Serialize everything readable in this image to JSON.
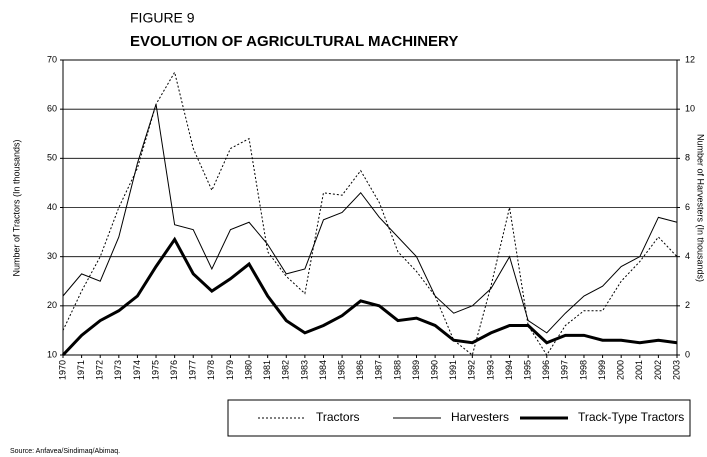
{
  "chart_data": {
    "type": "line",
    "figure_label": "FIGURE 9",
    "title": "EVOLUTION OF AGRICULTURAL MACHINERY",
    "y_label": "Number of Tractors (In thousands)",
    "y2_label": "Number of Harvesters (In thousands)",
    "source": "Source: Anfavea/Sindimaq/Abimaq.",
    "categories": [
      "1970",
      "1971",
      "1972",
      "1973",
      "1974",
      "1975",
      "1976",
      "1977",
      "1978",
      "1979",
      "1980",
      "1981",
      "1982",
      "1983",
      "1984",
      "1985",
      "1986",
      "1987",
      "1988",
      "1989",
      "1990",
      "1991",
      "1992",
      "1993",
      "1994",
      "1995",
      "1996",
      "1997",
      "1998",
      "1999",
      "2000",
      "2001",
      "2002",
      "2003"
    ],
    "series": [
      {
        "name": "Tractors",
        "color": "#000000",
        "line_style": "dotted",
        "width": 1,
        "values": [
          15,
          23,
          30,
          40,
          48,
          61,
          67.5,
          52,
          43.5,
          52,
          54,
          31,
          26,
          22.5,
          43,
          42.5,
          47.5,
          41,
          31,
          27,
          22,
          13,
          10,
          24,
          40,
          16,
          10,
          16,
          19,
          19,
          25,
          29,
          34,
          30
        ]
      },
      {
        "name": "Harvesters",
        "color": "#000000",
        "line_style": "solid",
        "width": 1,
        "axis": "y2",
        "values": [
          2.4,
          3.3,
          3.0,
          4.8,
          7.8,
          10.2,
          5.3,
          5.1,
          3.5,
          5.1,
          5.4,
          4.5,
          3.3,
          3.5,
          5.5,
          5.8,
          6.6,
          5.6,
          4.8,
          4.0,
          2.4,
          1.7,
          2.0,
          2.7,
          4.0,
          1.4,
          0.9,
          1.7,
          2.4,
          2.8,
          3.6,
          4.0,
          5.6,
          5.4
        ]
      },
      {
        "name": "Track-Type Tractors",
        "color": "#000000",
        "line_style": "solid",
        "width": 3,
        "axis": "y2",
        "values": [
          0,
          0.8,
          1.4,
          1.8,
          2.4,
          3.6,
          4.7,
          3.3,
          2.6,
          3.1,
          3.7,
          2.4,
          1.4,
          0.9,
          1.2,
          1.6,
          2.2,
          2.0,
          1.4,
          1.5,
          1.2,
          0.6,
          0.5,
          0.9,
          1.2,
          1.2,
          0.5,
          0.8,
          0.8,
          0.6,
          0.6,
          0.5,
          0.6,
          0.5
        ]
      }
    ],
    "ylim": [
      10,
      70
    ],
    "yticks": [
      10,
      20,
      30,
      40,
      50,
      60,
      70
    ],
    "y2lim": [
      0,
      12
    ],
    "y2ticks": [
      0,
      2,
      4,
      6,
      8,
      10,
      12
    ],
    "grid": true,
    "legend": "bottom"
  }
}
